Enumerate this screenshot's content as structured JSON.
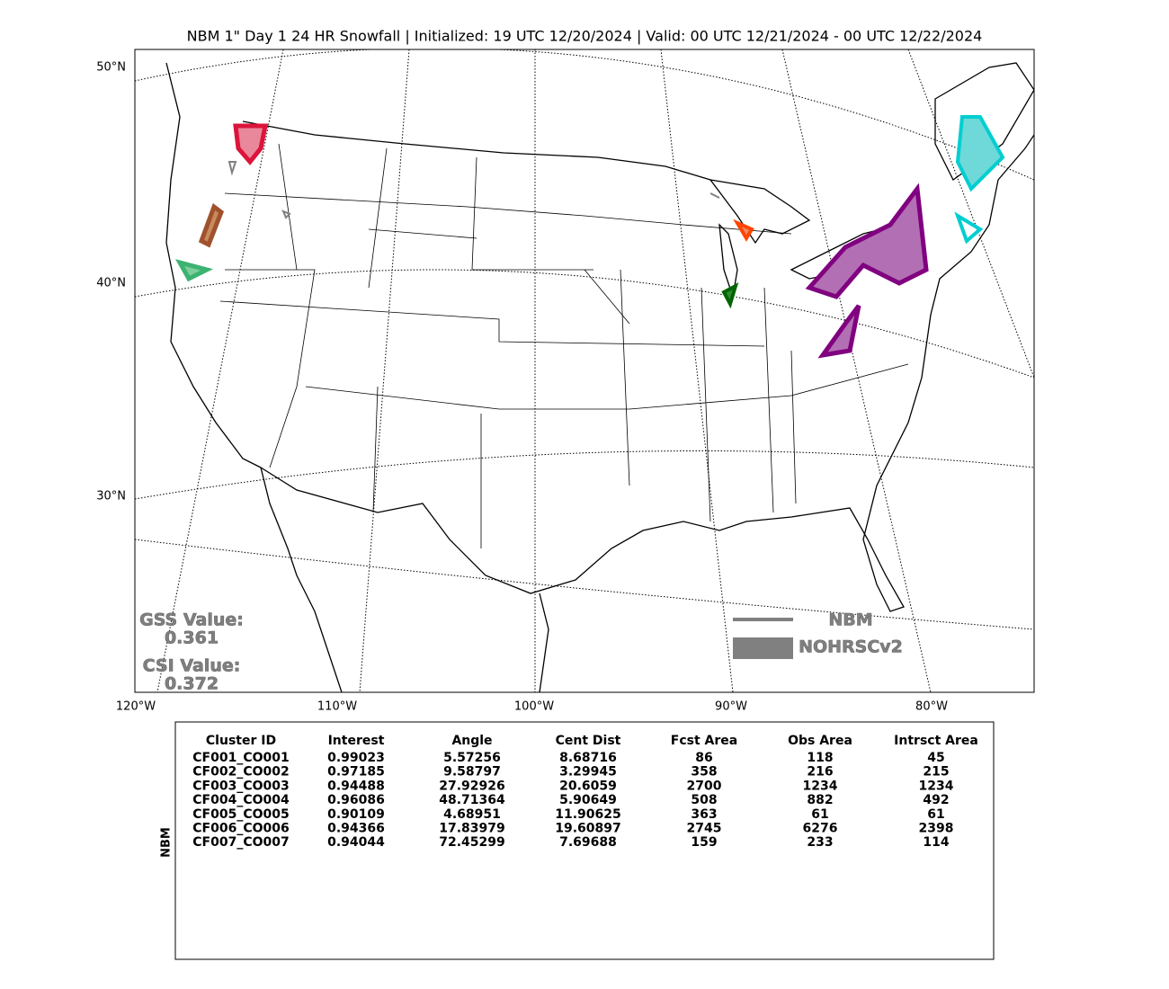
{
  "header": {
    "title": "NBM 1\" Day 1 24 HR Snowfall | Initialized: 19 UTC 12/20/2024 | Valid: 00 UTC 12/21/2024 - 00 UTC 12/22/2024"
  },
  "map": {
    "lat_labels": [
      "50°N",
      "40°N",
      "30°N"
    ],
    "lon_labels": [
      "120°W",
      "110°W",
      "100°W",
      "90°W",
      "80°W"
    ],
    "scores": [
      {
        "label": "GSS Value:",
        "value": "0.361"
      },
      {
        "label": "CSI Value:",
        "value": "0.372"
      }
    ],
    "legend": [
      "NBM",
      "NOHRSCv2"
    ]
  },
  "table": {
    "side_label": "NBM",
    "columns": [
      "Cluster ID",
      "Interest",
      "Angle",
      "Cent Dist",
      "Fcst Area",
      "Obs Area",
      "Intrsct Area"
    ],
    "row_colors": [
      "#006400",
      "#3cb371",
      "#00ced1",
      "#dc143c",
      "#a0522d",
      "#800080",
      "#ff4500"
    ],
    "rows": [
      [
        "CF001_CO001",
        "0.99023",
        "5.57256",
        "8.68716",
        "86",
        "118",
        "45"
      ],
      [
        "CF002_CO002",
        "0.97185",
        "9.58797",
        "3.29945",
        "358",
        "216",
        "215"
      ],
      [
        "CF003_CO003",
        "0.94488",
        "27.92926",
        "20.6059",
        "2700",
        "1234",
        "1234"
      ],
      [
        "CF004_CO004",
        "0.96086",
        "48.71364",
        "5.90649",
        "508",
        "882",
        "492"
      ],
      [
        "CF005_CO005",
        "0.90109",
        "4.68951",
        "11.90625",
        "363",
        "61",
        "61"
      ],
      [
        "CF006_CO006",
        "0.94366",
        "17.83979",
        "19.60897",
        "2745",
        "6276",
        "2398"
      ],
      [
        "CF007_CO007",
        "0.94044",
        "72.45299",
        "7.69688",
        "159",
        "233",
        "114"
      ]
    ]
  }
}
